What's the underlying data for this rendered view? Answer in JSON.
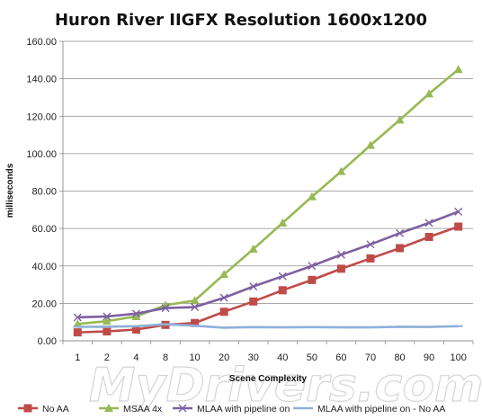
{
  "chart_data": {
    "type": "line",
    "title": "Huron River IIGFX Resolution 1600x1200",
    "xlabel": "Scene Complexity",
    "ylabel": "milliseconds",
    "categories": [
      "1",
      "2",
      "4",
      "8",
      "10",
      "20",
      "30",
      "40",
      "50",
      "60",
      "70",
      "80",
      "90",
      "100"
    ],
    "ylim": [
      0,
      160
    ],
    "yticks": [
      "0.00",
      "20.00",
      "40.00",
      "60.00",
      "80.00",
      "100.00",
      "120.00",
      "140.00",
      "160.00"
    ],
    "grid": true,
    "legend": "bottom",
    "series": [
      {
        "name": "No AA",
        "color": "#be4b48",
        "marker": "square",
        "values": [
          4.5,
          5,
          6,
          8.5,
          9.5,
          15.5,
          21,
          27,
          32.5,
          38.5,
          44,
          49.5,
          55.5,
          61
        ]
      },
      {
        "name": "MSAA 4x",
        "color": "#98b954",
        "marker": "triangle",
        "values": [
          9,
          10.5,
          13,
          19,
          21.5,
          35.5,
          49,
          63,
          77,
          90.5,
          104.5,
          118,
          132,
          145
        ]
      },
      {
        "name": "MLAA with pipeline on",
        "color": "#7d60a0",
        "marker": "x",
        "values": [
          12.5,
          13,
          14.5,
          17.5,
          18,
          23,
          29,
          34.5,
          40,
          46,
          51.5,
          57.5,
          63,
          69
        ]
      },
      {
        "name": "MLAA with pipeline on - No AA",
        "color": "#8fb0d9",
        "marker": "dash",
        "values": [
          7.5,
          7.5,
          7.8,
          8.8,
          8,
          7,
          7.3,
          7.2,
          7.3,
          7.2,
          7.2,
          7.5,
          7.4,
          7.8
        ]
      }
    ]
  },
  "watermark": "MyDrivers.com"
}
